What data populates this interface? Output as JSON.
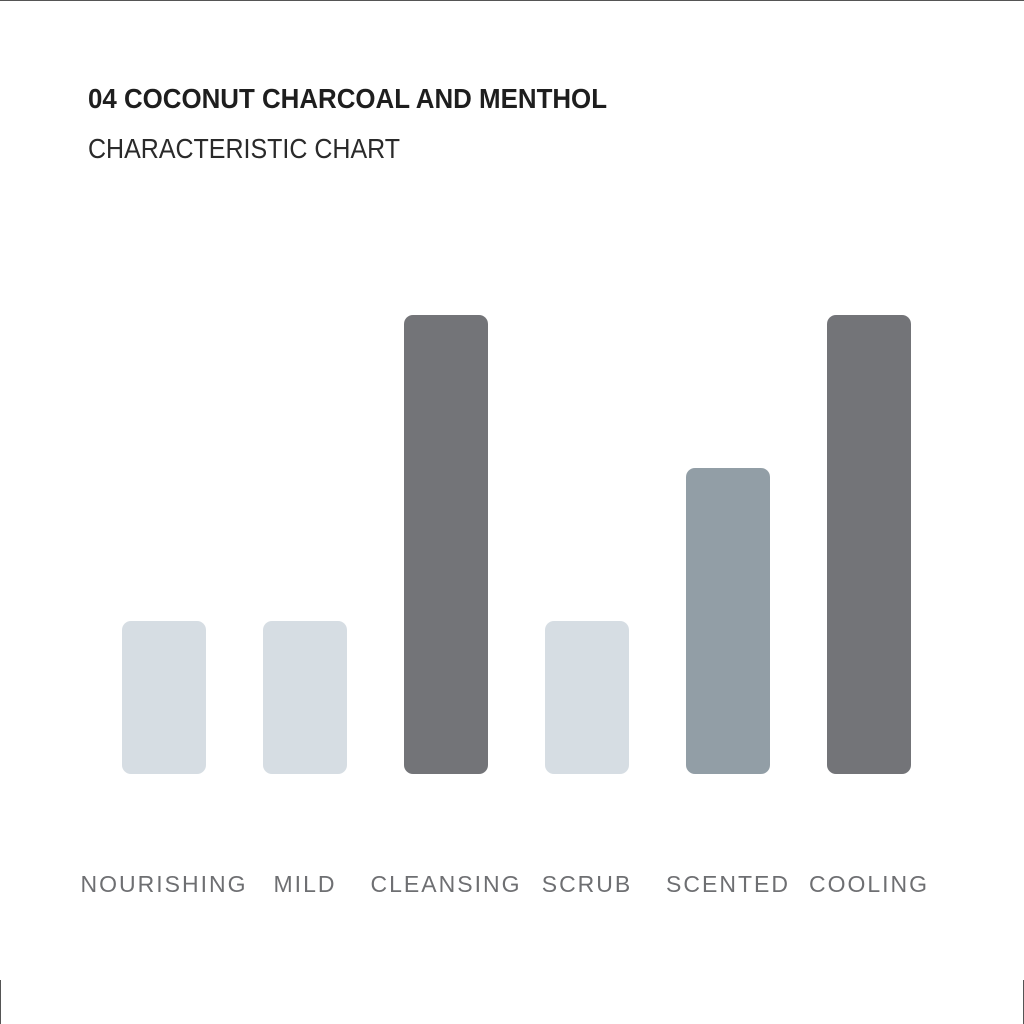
{
  "chart_data": {
    "type": "bar",
    "title": "04 COCONUT CHARCOAL AND MENTHOL",
    "subtitle": "CHARACTERISTIC CHART",
    "categories": [
      "NOURISHING",
      "MILD",
      "CLEANSING",
      "SCRUB",
      "SCENTED",
      "COOLING"
    ],
    "values": [
      1,
      1,
      3,
      1,
      2,
      3
    ],
    "colors": [
      "#d6dde3",
      "#d6dde3",
      "#737478",
      "#d6dde3",
      "#929ea6",
      "#737478"
    ]
  }
}
